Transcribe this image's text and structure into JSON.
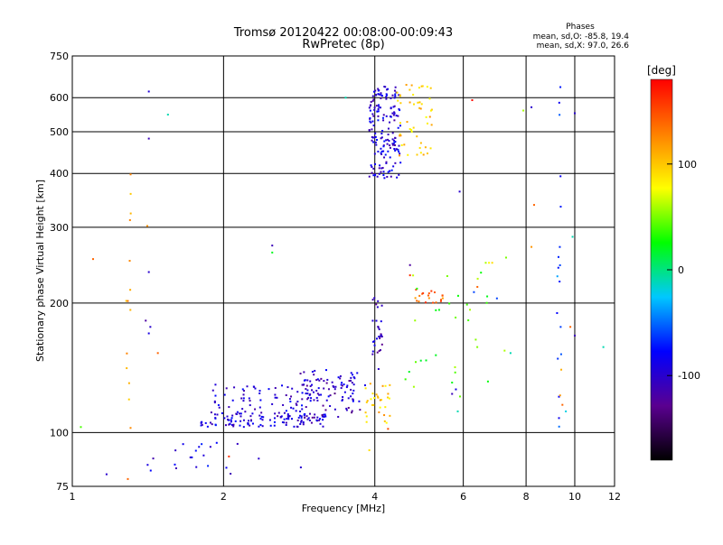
{
  "header": {
    "title": "Tromsø 20120422 00:08:00-00:09:43",
    "subtitle": "RwPretec (8p)",
    "phases_title": "Phases",
    "phases_o": "mean, sd,O: -85.8, 19.4",
    "phases_x": "mean, sd,X:  97.0, 26.6"
  },
  "chart_data": {
    "type": "scatter",
    "title": "Tromsø 20120422 00:08:00-00:09:43",
    "subtitle": "RwPretec (8p)",
    "xlabel": "Frequency [MHz]",
    "ylabel": "Stationary phase Virtual Height [km]",
    "x_scale": "log",
    "y_scale": "log",
    "xlim": [
      1,
      12
    ],
    "ylim": [
      75,
      750
    ],
    "x_ticks": [
      "1",
      "2",
      "4",
      "6",
      "8",
      "10",
      "12"
    ],
    "x_tick_values": [
      1,
      2,
      4,
      6,
      8,
      10,
      12
    ],
    "y_ticks": [
      "75",
      "100",
      "200",
      "300",
      "400",
      "500",
      "600",
      "750"
    ],
    "y_tick_values": [
      75,
      100,
      200,
      300,
      400,
      500,
      600,
      750
    ],
    "grid": true,
    "colorbar": {
      "label": "[deg]",
      "ticks": [
        "100",
        "0",
        "-100"
      ],
      "tick_values": [
        100,
        0,
        -100
      ],
      "range": [
        -180,
        180
      ],
      "colors": [
        "#000000",
        "#5a0090",
        "#0000ff",
        "#00c8ff",
        "#00ff00",
        "#ffff00",
        "#ff8000",
        "#ff0000"
      ]
    },
    "clusters": [
      {
        "name_hint": "o-trace-low",
        "x_range": [
          1.8,
          3.2
        ],
        "y_range": [
          103,
          112
        ],
        "phase": -95,
        "count": 130
      },
      {
        "name_hint": "o-trace-mid",
        "x_range": [
          1.9,
          3.0
        ],
        "y_range": [
          112,
          130
        ],
        "phase": -95,
        "count": 60
      },
      {
        "name_hint": "o-trace-upper",
        "x_range": [
          2.8,
          3.7
        ],
        "y_range": [
          118,
          140
        ],
        "phase": -100,
        "count": 60
      },
      {
        "name_hint": "o-trace-rise",
        "x_range": [
          2.9,
          3.9
        ],
        "y_range": [
          108,
          135
        ],
        "phase": -110,
        "count": 40
      },
      {
        "name_hint": "x-trace-4mhz",
        "x_range": [
          3.8,
          4.3
        ],
        "y_range": [
          105,
          130
        ],
        "phase": 100,
        "count": 30
      },
      {
        "name_hint": "cusp",
        "x_range": [
          3.95,
          4.15
        ],
        "y_range": [
          140,
          210
        ],
        "phase": -105,
        "count": 30
      },
      {
        "name_hint": "f-layer-o",
        "x_range": [
          3.9,
          4.5
        ],
        "y_range": [
          390,
          640
        ],
        "phase": -95,
        "count": 170
      },
      {
        "name_hint": "f-layer-x",
        "x_range": [
          4.4,
          5.2
        ],
        "y_range": [
          440,
          650
        ],
        "phase": 100,
        "count": 50
      },
      {
        "name_hint": "scatter-5mhz-orange",
        "x_range": [
          4.8,
          5.5
        ],
        "y_range": [
          200,
          215
        ],
        "phase": 140,
        "count": 20
      },
      {
        "name_hint": "low-scatter",
        "x_range": [
          1.4,
          2.2
        ],
        "y_range": [
          80,
          95
        ],
        "phase": -90,
        "count": 20
      },
      {
        "name_hint": "column-1.3",
        "x_range": [
          1.28,
          1.31
        ],
        "y_range": [
          90,
          450
        ],
        "phase": 110,
        "count": 14
      },
      {
        "name_hint": "column-9.3",
        "x_range": [
          9.2,
          9.4
        ],
        "y_range": [
          100,
          650
        ],
        "phase": -60,
        "count": 18
      },
      {
        "name_hint": "mid-scatter",
        "x_range": [
          4.6,
          7.0
        ],
        "y_range": [
          120,
          260
        ],
        "phase": 40,
        "count": 30
      }
    ],
    "points": [
      [
        1.42,
        620,
        -95
      ],
      [
        1.55,
        548,
        -10
      ],
      [
        1.42,
        482,
        -110
      ],
      [
        1.41,
        302,
        120
      ],
      [
        1.42,
        236,
        -100
      ],
      [
        1.1,
        253,
        140
      ],
      [
        1.4,
        182,
        -120
      ],
      [
        1.43,
        176,
        -100
      ],
      [
        1.42,
        170,
        -90
      ],
      [
        1.17,
        80,
        -100
      ],
      [
        1.29,
        78,
        140
      ],
      [
        1.04,
        103,
        40
      ],
      [
        2.5,
        272,
        -110
      ],
      [
        2.5,
        262,
        20
      ],
      [
        3.5,
        600,
        -10
      ],
      [
        6.25,
        592,
        175
      ],
      [
        5.9,
        363,
        -100
      ],
      [
        4.7,
        245,
        -120
      ],
      [
        4.7,
        232,
        160
      ],
      [
        8.2,
        570,
        -100
      ],
      [
        8.3,
        338,
        140
      ],
      [
        7.9,
        560,
        60
      ],
      [
        10.0,
        552,
        -100
      ],
      [
        9.9,
        285,
        -10
      ],
      [
        8.2,
        270,
        120
      ],
      [
        6.65,
        248,
        60
      ],
      [
        6.75,
        248,
        80
      ],
      [
        6.85,
        248,
        90
      ],
      [
        6.4,
        218,
        140
      ],
      [
        6.3,
        212,
        -60
      ],
      [
        7.0,
        205,
        -60
      ],
      [
        7.3,
        255,
        50
      ],
      [
        9.8,
        176,
        140
      ],
      [
        10.0,
        168,
        -110
      ],
      [
        11.4,
        158,
        -10
      ],
      [
        9.4,
        140,
        110
      ],
      [
        9.35,
        122,
        120
      ],
      [
        9.45,
        116,
        140
      ],
      [
        9.6,
        112,
        -20
      ],
      [
        2.05,
        88,
        160
      ],
      [
        2.35,
        87,
        -100
      ],
      [
        2.85,
        83,
        -100
      ],
      [
        3.9,
        91,
        90
      ],
      [
        4.25,
        102,
        150
      ],
      [
        7.25,
        155,
        60
      ],
      [
        7.45,
        153,
        -10
      ],
      [
        5.85,
        112,
        -10
      ],
      [
        5.7,
        123,
        -110
      ],
      [
        5.8,
        126,
        -90
      ],
      [
        1.48,
        153,
        140
      ]
    ]
  }
}
